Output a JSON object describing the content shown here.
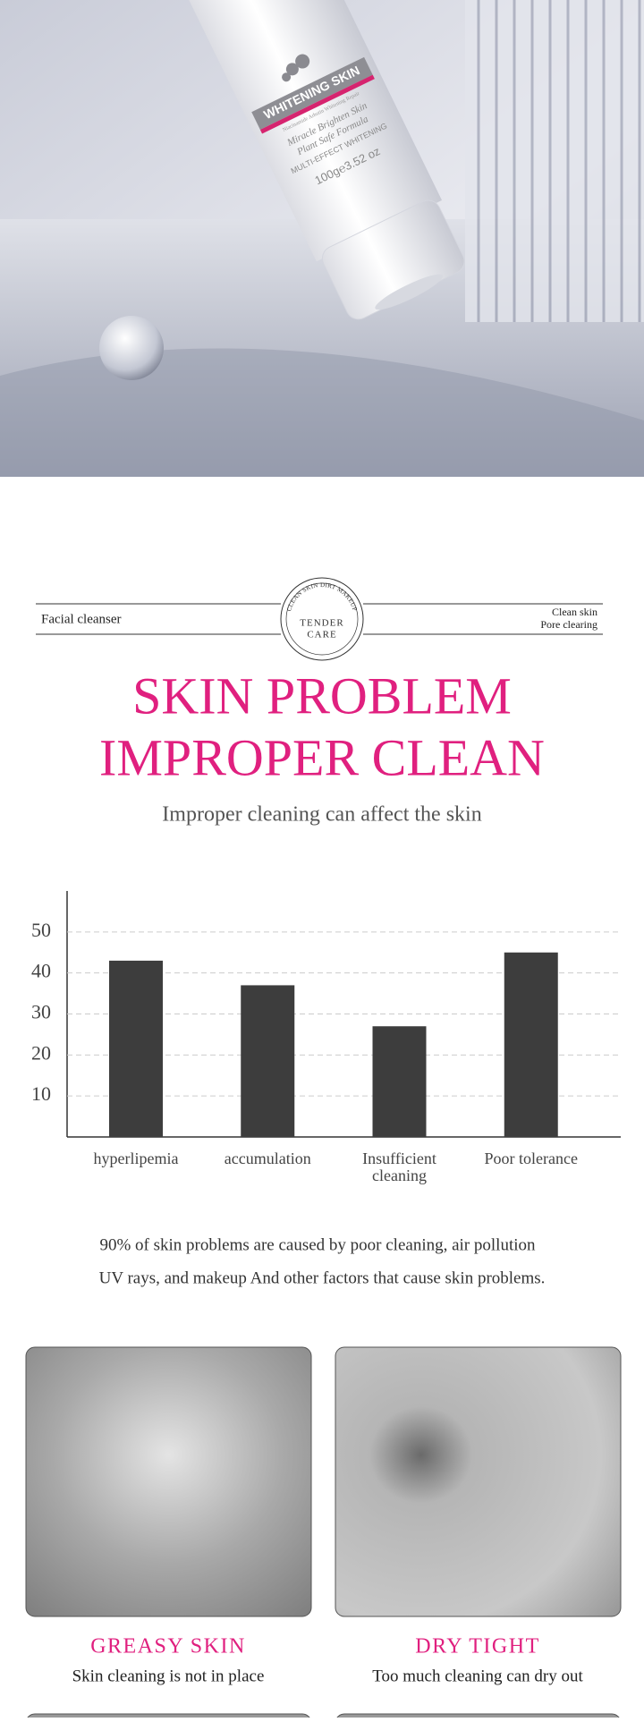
{
  "hero": {
    "brand": "WHITENING SKIN",
    "tagline": "Niacinamide Arbutin Whitening Repair",
    "lines": [
      "Miracle Brighten Skin",
      "Plant Safe Formula"
    ],
    "effect": "MULTI-EFFECT WHITENING",
    "weight": "100g℮3.52 oz"
  },
  "header": {
    "left": "Facial cleanser",
    "logo_arc": "CLEAN SKIN DIRT MAKEUP",
    "logo": [
      "TENDER",
      "CARE"
    ],
    "right": [
      "Clean skin",
      "Pore clearing"
    ]
  },
  "title": [
    "SKIN PROBLEM",
    "IMPROPER CLEAN"
  ],
  "subtitle": "Improper cleaning can affect the skin",
  "chart_data": {
    "type": "bar",
    "categories": [
      "hyperlipemia",
      "accumulation",
      "Insufficient cleaning",
      "Poor tolerance"
    ],
    "values": [
      43,
      37,
      27,
      45
    ],
    "color": "#3d3d3d",
    "ylim": [
      0,
      60
    ],
    "yticks": [
      10,
      20,
      30,
      40,
      50
    ],
    "grid": true
  },
  "description": [
    "90% of skin problems are caused by poor cleaning, air pollution",
    "UV rays, and makeup And other factors that cause skin problems."
  ],
  "cards": [
    {
      "title": "GREASY SKIN",
      "text": "Skin cleaning is not in place"
    },
    {
      "title": "DRY TIGHT",
      "text": "Too much cleaning can dry out"
    }
  ]
}
